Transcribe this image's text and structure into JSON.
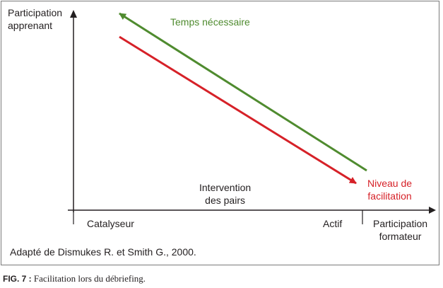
{
  "diagram": {
    "y_axis_label": [
      "Participation",
      "apprenant"
    ],
    "x_axis_label": [
      "Participation",
      "formateur"
    ],
    "x_tick_left": "Catalyseur",
    "x_tick_right": "Actif",
    "middle_label": [
      "Intervention",
      "des pairs"
    ],
    "green_arrow_label": "Temps nécessaire",
    "red_arrow_label": [
      "Niveau de",
      "facilitation"
    ],
    "source": "Adapté de Dismukes R. et Smith G., 2000.",
    "colors": {
      "green": "#4f8b2f",
      "red": "#d62128",
      "axis": "#231f20",
      "frame": "#7a7a7a"
    }
  },
  "caption": {
    "label": "FIG. 7 :",
    "text": "Facilitation lors du débriefing."
  }
}
